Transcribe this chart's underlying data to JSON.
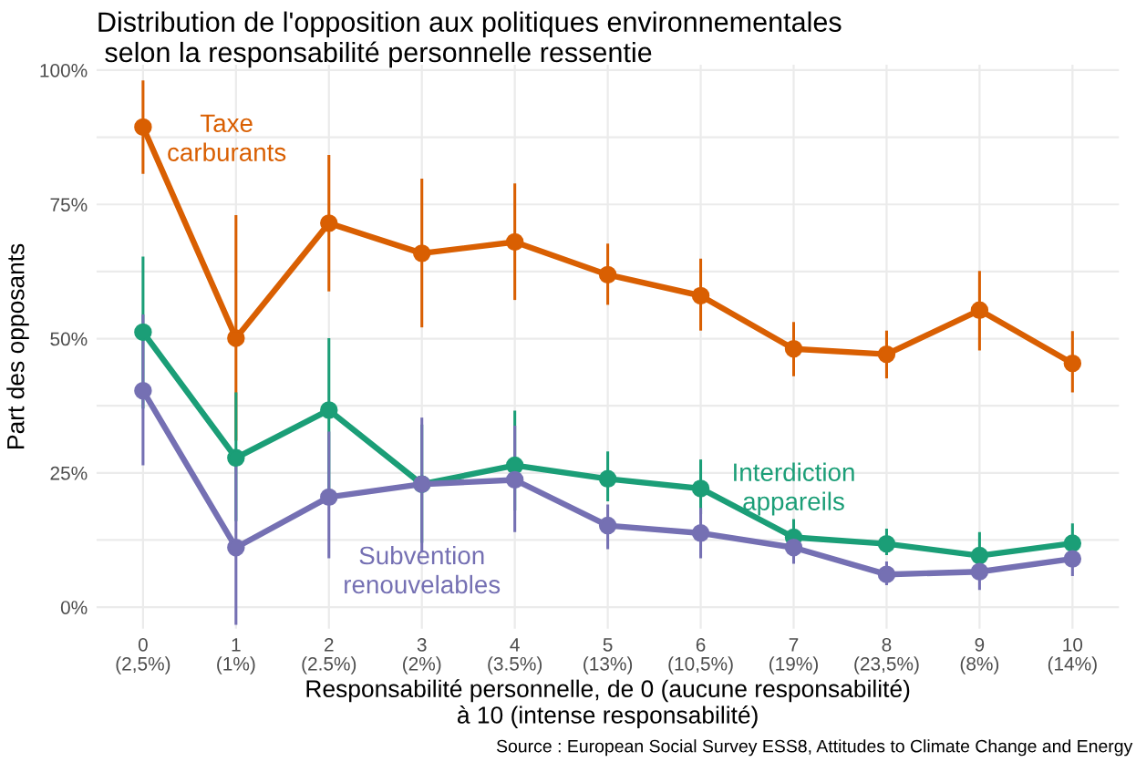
{
  "chart_data": {
    "type": "line",
    "title": "Distribution de l'opposition aux politiques environnementales\n selon la responsabilité personnelle ressentie",
    "xlabel": "Responsabilité personnelle, de 0 (aucune responsabilité)\nà 10 (intense responsabilité)",
    "ylabel": "Part des opposants",
    "categories": [
      "0\n(2,5%)",
      "1\n(1%)",
      "2\n(2.5%)",
      "3\n(2%)",
      "4\n(3.5%)",
      "5\n(13%)",
      "6\n(10,5%)",
      "7\n(19%)",
      "8\n(23,5%)",
      "9\n(8%)",
      "10\n(14%)"
    ],
    "series": [
      {
        "name": "Taxe\ncarburants",
        "color": "#d95f02",
        "values": [
          89.4,
          50.1,
          71.5,
          65.9,
          68.0,
          61.9,
          58.0,
          48.1,
          47.1,
          55.3,
          45.4
        ],
        "errors": [
          [
            80.7,
            98.1
          ],
          [
            31,
            73
          ],
          [
            58.8,
            84.2
          ],
          [
            52.1,
            79.8
          ],
          [
            57.2,
            78.9
          ],
          [
            56.3,
            67.7
          ],
          [
            51.5,
            64.9
          ],
          [
            43.0,
            53.1
          ],
          [
            42.6,
            51.5
          ],
          [
            47.8,
            62.6
          ],
          [
            40.0,
            51.4
          ]
        ]
      },
      {
        "name": "Interdiction\nappareils",
        "color": "#1b9e77",
        "values": [
          51.2,
          27.8,
          36.7,
          22.9,
          26.4,
          23.9,
          22.1,
          13.0,
          11.8,
          9.6,
          11.9
        ],
        "errors": [
          [
            37,
            65.3
          ],
          [
            16,
            40
          ],
          [
            22,
            50.1
          ],
          [
            12,
            34
          ],
          [
            18,
            36.6
          ],
          [
            19.7,
            29.0
          ],
          [
            17.3,
            27.5
          ],
          [
            10.3,
            16.4
          ],
          [
            9.7,
            14.6
          ],
          [
            7.3,
            14.0
          ],
          [
            10.1,
            15.6
          ]
        ]
      },
      {
        "name": "Subvention\nrenouvelables",
        "color": "#7570b3",
        "values": [
          40.3,
          11.1,
          20.5,
          22.9,
          23.7,
          15.2,
          13.8,
          11.1,
          6.1,
          6.6,
          9.0
        ],
        "errors": [
          [
            26.4,
            54.5
          ],
          [
            -3.3,
            27
          ],
          [
            9.1,
            32.7
          ],
          [
            10.3,
            35.3
          ],
          [
            14.0,
            33.8
          ],
          [
            10.8,
            19.1
          ],
          [
            9.1,
            18.5
          ],
          [
            8.1,
            13.8
          ],
          [
            4.1,
            8.5
          ],
          [
            3.2,
            8.4
          ],
          [
            5.8,
            11.4
          ]
        ]
      }
    ],
    "ylim": [
      -4,
      101
    ],
    "yticks": [
      {
        "value": 0,
        "label": "0%"
      },
      {
        "value": 12.5,
        "label": null
      },
      {
        "value": 25,
        "label": "25%"
      },
      {
        "value": 37.5,
        "label": null
      },
      {
        "value": 50,
        "label": "50%"
      },
      {
        "value": 62.5,
        "label": null
      },
      {
        "value": 75,
        "label": "75%"
      },
      {
        "value": 87.5,
        "label": null
      },
      {
        "value": 100,
        "label": "100%"
      }
    ],
    "grid": true,
    "marker": "circle",
    "line_style": "solid",
    "legend": false,
    "annotations": [
      "Source : European Social Survey ESS8, Attitudes to Climate Change and Energy"
    ]
  }
}
